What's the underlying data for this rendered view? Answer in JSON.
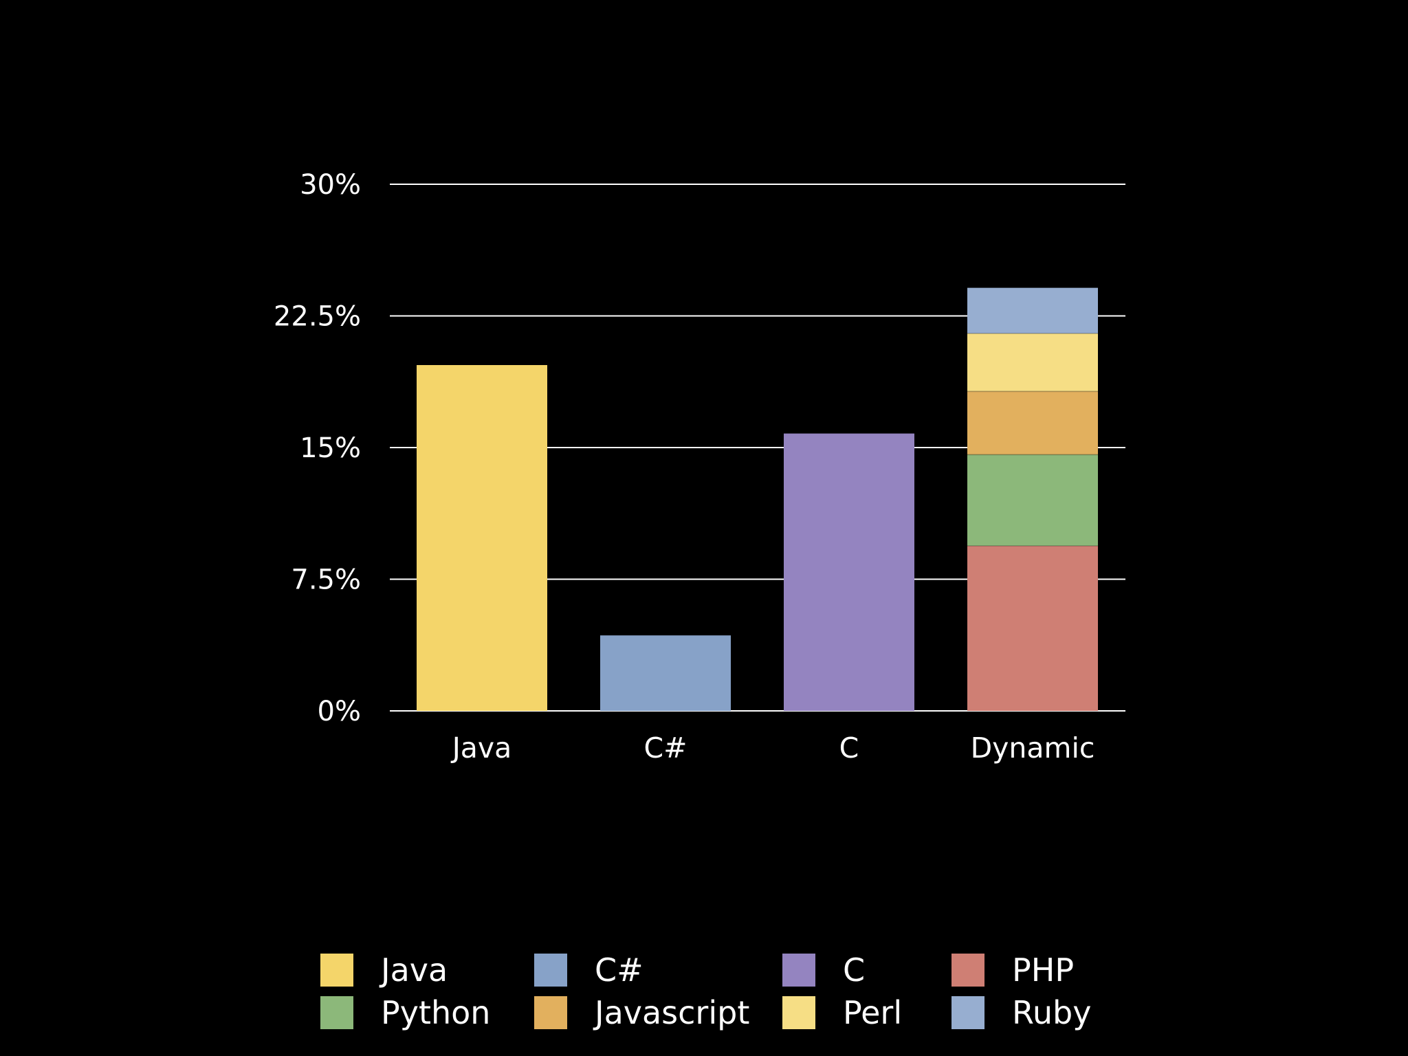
{
  "chart_data": {
    "type": "bar",
    "stacked": true,
    "categories": [
      "Java",
      "C#",
      "C",
      "Dynamic"
    ],
    "series": [
      {
        "name": "Java",
        "values": [
          19.7,
          0,
          0,
          0
        ],
        "color": "#F4D56A"
      },
      {
        "name": "C#",
        "values": [
          0,
          4.3,
          0,
          0
        ],
        "color": "#87A2C8"
      },
      {
        "name": "C",
        "values": [
          0,
          0,
          15.8,
          0
        ],
        "color": "#9484C0"
      },
      {
        "name": "PHP",
        "values": [
          0,
          0,
          0,
          9.4
        ],
        "color": "#CF7F74"
      },
      {
        "name": "Python",
        "values": [
          0,
          0,
          0,
          5.2
        ],
        "color": "#8CB87A"
      },
      {
        "name": "Javascript",
        "values": [
          0,
          0,
          0,
          3.6
        ],
        "color": "#E2B05E"
      },
      {
        "name": "Perl",
        "values": [
          0,
          0,
          0,
          3.3
        ],
        "color": "#F6DE85"
      },
      {
        "name": "Ruby",
        "values": [
          0,
          0,
          0,
          2.6
        ],
        "color": "#97AED0"
      }
    ],
    "y_ticks": [
      "0%",
      "7.5%",
      "15%",
      "22.5%",
      "30%"
    ],
    "y_tick_values": [
      0,
      7.5,
      15,
      22.5,
      30
    ],
    "ylim": [
      0,
      30
    ],
    "grid": true,
    "legend_position": "bottom",
    "legend": [
      {
        "name": "Java",
        "color": "#F4D56A"
      },
      {
        "name": "C#",
        "color": "#87A2C8"
      },
      {
        "name": "C",
        "color": "#9484C0"
      },
      {
        "name": "PHP",
        "color": "#CF7F74"
      },
      {
        "name": "Python",
        "color": "#8CB87A"
      },
      {
        "name": "Javascript",
        "color": "#E2B05E"
      },
      {
        "name": "Perl",
        "color": "#F6DE85"
      },
      {
        "name": "Ruby",
        "color": "#97AED0"
      }
    ],
    "background": "#000000",
    "gridline_color": "#ffffff"
  }
}
